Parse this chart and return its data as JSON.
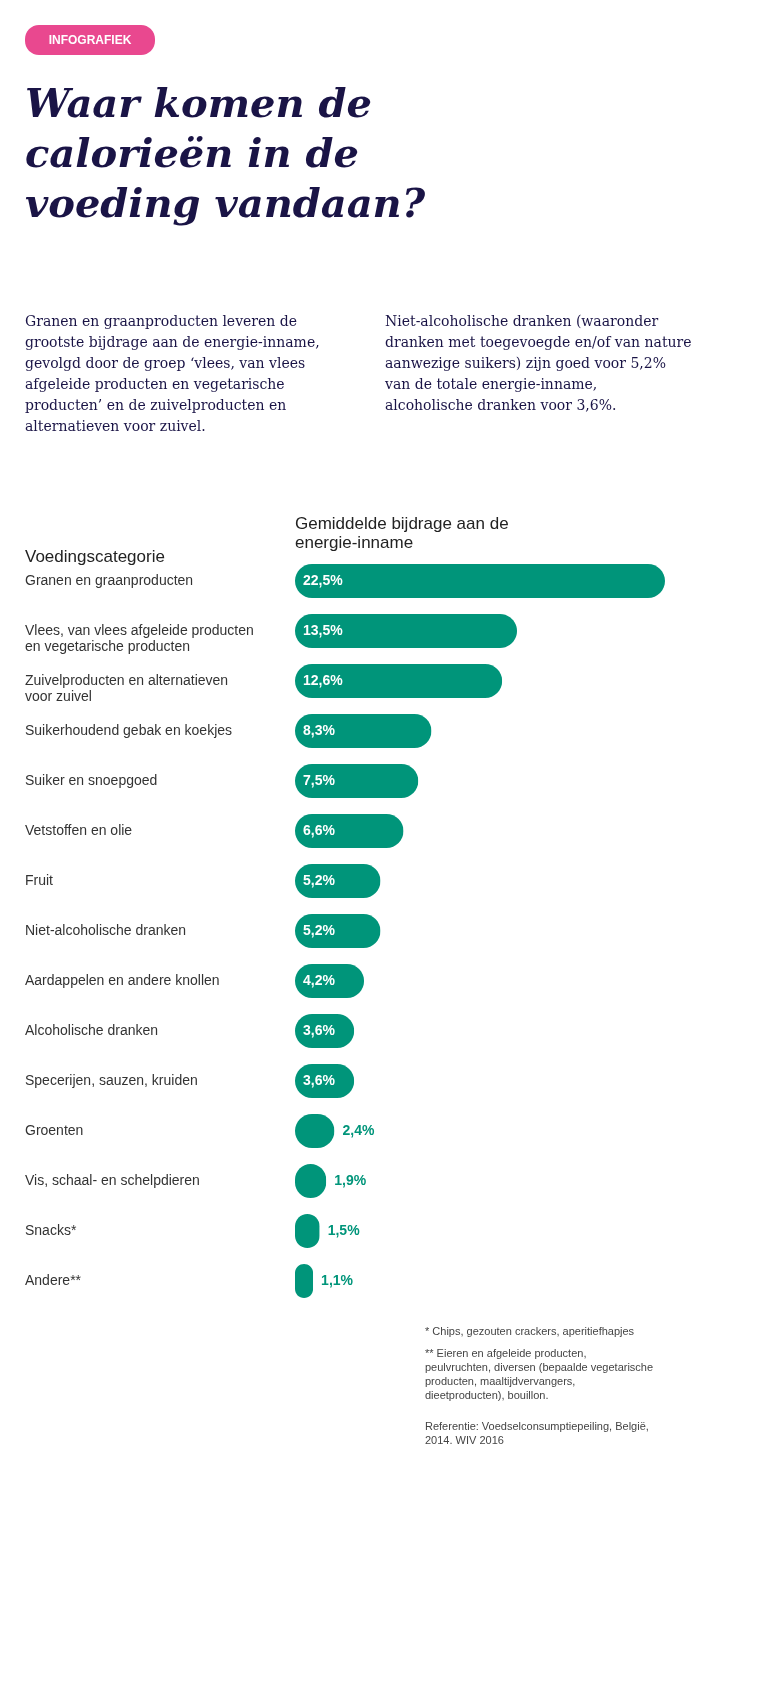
{
  "chart_data": {
    "type": "bar",
    "orientation": "horizontal",
    "title": "Waar komen de calorieën in de voeding vandaan?",
    "ylabel": "Voedingscategorie",
    "xlabel": "Gemiddelde bijdrage aan de energie-inname",
    "categories": [
      "Granen en graanproducten",
      "Vlees, van vlees afgeleide producten en vegetarische producten",
      "Zuivelproducten en alternatieven voor zuivel",
      "Suikerhoudend gebak en koekjes",
      "Suiker en snoepgoed",
      "Vetstoffen en olie",
      "Fruit",
      "Niet-alcoholische dranken",
      "Aardappelen en andere knollen",
      "Alcoholische dranken",
      "Specerijen, sauzen, kruiden",
      "Groenten",
      "Vis, schaal- en schelpdieren",
      "Snacks*",
      "Andere**"
    ],
    "values": [
      22.5,
      13.5,
      12.6,
      8.3,
      7.5,
      6.6,
      5.2,
      5.2,
      4.2,
      3.6,
      3.6,
      2.4,
      1.9,
      1.5,
      1.1
    ],
    "value_labels": [
      "22,5%",
      "13,5%",
      "12,6%",
      "8,3%",
      "7,5%",
      "6,6%",
      "5,2%",
      "5,2%",
      "4,2%",
      "3,6%",
      "3,6%",
      "2,4%",
      "1,9%",
      "1,5%",
      "1,1%"
    ],
    "color": "#00957a",
    "annotations": [
      "INFOGRAFIEK",
      "Granen en graanproducten leveren de grootste bijdrage aan de energie-inname, gevolgd door de groep ‘vlees, van vlees afgeleide producten en vegetarische producten’ en de zuivelproducten en alternatieven voor zuivel.",
      "Niet-alcoholische dranken (waaronder dranken met toegevoegde en/of van nature aanwezige suikers) zijn goed voor 5,2% van de totale energie-inname, alcoholische dranken voor 3,6%.",
      "* Chips, gezouten crackers, aperitiefhapjes",
      "** Eieren en afgeleide producten, peulvruchten, diversen (bepaalde vegetarische producten, maaltijdvervangers, dieetproducten), bouillon.",
      "Referentie: Voedselconsumptiepeiling, België, 2014. WIV 2016"
    ]
  }
}
